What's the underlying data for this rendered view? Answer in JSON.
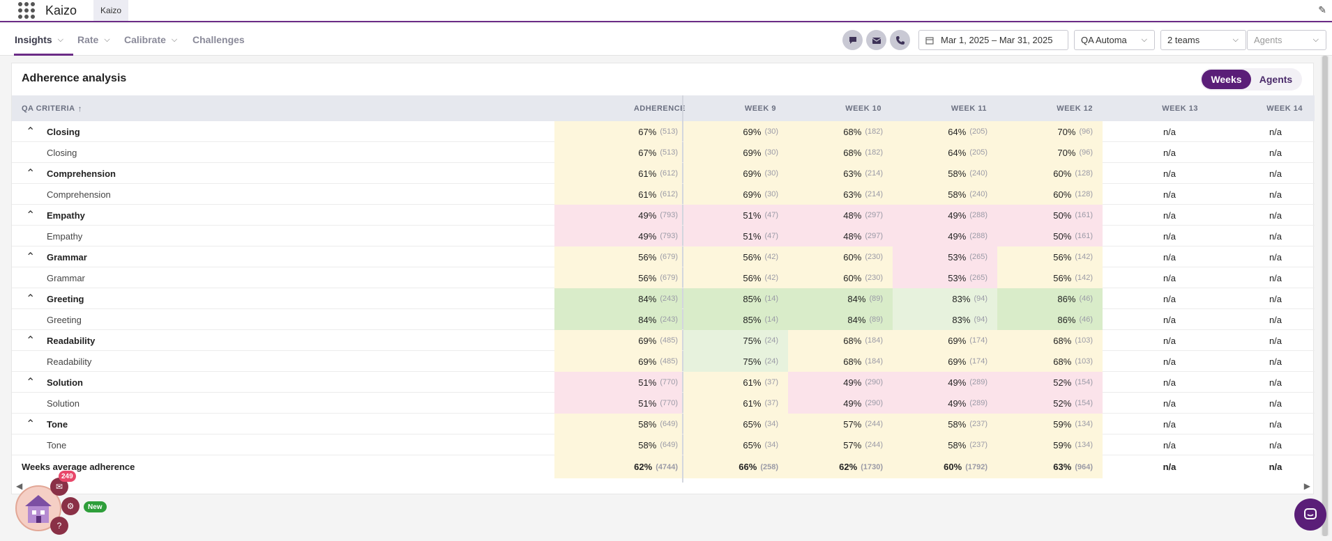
{
  "app": {
    "title": "Kaizo",
    "tab_label": "Kaizo"
  },
  "nav": {
    "items": [
      {
        "label": "Insights",
        "has_dropdown": true,
        "active": true
      },
      {
        "label": "Rate",
        "has_dropdown": true,
        "active": false
      },
      {
        "label": "Calibrate",
        "has_dropdown": true,
        "active": false
      },
      {
        "label": "Challenges",
        "has_dropdown": false,
        "active": false
      }
    ],
    "channels": [
      "chat-icon",
      "email-icon",
      "phone-icon"
    ],
    "date_range": "Mar 1, 2025 – Mar 31, 2025",
    "scorecard": "QA Automa",
    "teams": "2 teams",
    "agents_placeholder": "Agents"
  },
  "card": {
    "title": "Adherence analysis",
    "toggle": {
      "weeks": "Weeks",
      "agents": "Agents",
      "selected": "Weeks"
    }
  },
  "table": {
    "headers": {
      "criteria": "QA CRITERIA",
      "adherence": "ADHERENCE",
      "weeks": [
        "WEEK 9",
        "WEEK 10",
        "WEEK 11",
        "WEEK 12",
        "WEEK 13",
        "WEEK 14"
      ]
    },
    "rows": [
      {
        "name": "Closing",
        "group": true,
        "adh": [
          "67%",
          "(513)"
        ],
        "w": [
          [
            "69%",
            "(30)"
          ],
          [
            "68%",
            "(182)"
          ],
          [
            "64%",
            "(205)"
          ],
          [
            "70%",
            "(96)"
          ],
          [
            "n/a",
            ""
          ],
          [
            "n/a",
            ""
          ]
        ]
      },
      {
        "name": "Closing",
        "group": false,
        "adh": [
          "67%",
          "(513)"
        ],
        "w": [
          [
            "69%",
            "(30)"
          ],
          [
            "68%",
            "(182)"
          ],
          [
            "64%",
            "(205)"
          ],
          [
            "70%",
            "(96)"
          ],
          [
            "n/a",
            ""
          ],
          [
            "n/a",
            ""
          ]
        ]
      },
      {
        "name": "Comprehension",
        "group": true,
        "adh": [
          "61%",
          "(612)"
        ],
        "w": [
          [
            "69%",
            "(30)"
          ],
          [
            "63%",
            "(214)"
          ],
          [
            "58%",
            "(240)"
          ],
          [
            "60%",
            "(128)"
          ],
          [
            "n/a",
            ""
          ],
          [
            "n/a",
            ""
          ]
        ]
      },
      {
        "name": "Comprehension",
        "group": false,
        "adh": [
          "61%",
          "(612)"
        ],
        "w": [
          [
            "69%",
            "(30)"
          ],
          [
            "63%",
            "(214)"
          ],
          [
            "58%",
            "(240)"
          ],
          [
            "60%",
            "(128)"
          ],
          [
            "n/a",
            ""
          ],
          [
            "n/a",
            ""
          ]
        ]
      },
      {
        "name": "Empathy",
        "group": true,
        "adh": [
          "49%",
          "(793)"
        ],
        "w": [
          [
            "51%",
            "(47)"
          ],
          [
            "48%",
            "(297)"
          ],
          [
            "49%",
            "(288)"
          ],
          [
            "50%",
            "(161)"
          ],
          [
            "n/a",
            ""
          ],
          [
            "n/a",
            ""
          ]
        ]
      },
      {
        "name": "Empathy",
        "group": false,
        "adh": [
          "49%",
          "(793)"
        ],
        "w": [
          [
            "51%",
            "(47)"
          ],
          [
            "48%",
            "(297)"
          ],
          [
            "49%",
            "(288)"
          ],
          [
            "50%",
            "(161)"
          ],
          [
            "n/a",
            ""
          ],
          [
            "n/a",
            ""
          ]
        ]
      },
      {
        "name": "Grammar",
        "group": true,
        "adh": [
          "56%",
          "(679)"
        ],
        "w": [
          [
            "56%",
            "(42)"
          ],
          [
            "60%",
            "(230)"
          ],
          [
            "53%",
            "(265)"
          ],
          [
            "56%",
            "(142)"
          ],
          [
            "n/a",
            ""
          ],
          [
            "n/a",
            ""
          ]
        ]
      },
      {
        "name": "Grammar",
        "group": false,
        "adh": [
          "56%",
          "(679)"
        ],
        "w": [
          [
            "56%",
            "(42)"
          ],
          [
            "60%",
            "(230)"
          ],
          [
            "53%",
            "(265)"
          ],
          [
            "56%",
            "(142)"
          ],
          [
            "n/a",
            ""
          ],
          [
            "n/a",
            ""
          ]
        ]
      },
      {
        "name": "Greeting",
        "group": true,
        "adh": [
          "84%",
          "(243)"
        ],
        "w": [
          [
            "85%",
            "(14)"
          ],
          [
            "84%",
            "(89)"
          ],
          [
            "83%",
            "(94)"
          ],
          [
            "86%",
            "(46)"
          ],
          [
            "n/a",
            ""
          ],
          [
            "n/a",
            ""
          ]
        ]
      },
      {
        "name": "Greeting",
        "group": false,
        "adh": [
          "84%",
          "(243)"
        ],
        "w": [
          [
            "85%",
            "(14)"
          ],
          [
            "84%",
            "(89)"
          ],
          [
            "83%",
            "(94)"
          ],
          [
            "86%",
            "(46)"
          ],
          [
            "n/a",
            ""
          ],
          [
            "n/a",
            ""
          ]
        ]
      },
      {
        "name": "Readability",
        "group": true,
        "adh": [
          "69%",
          "(485)"
        ],
        "w": [
          [
            "75%",
            "(24)"
          ],
          [
            "68%",
            "(184)"
          ],
          [
            "69%",
            "(174)"
          ],
          [
            "68%",
            "(103)"
          ],
          [
            "n/a",
            ""
          ],
          [
            "n/a",
            ""
          ]
        ]
      },
      {
        "name": "Readability",
        "group": false,
        "adh": [
          "69%",
          "(485)"
        ],
        "w": [
          [
            "75%",
            "(24)"
          ],
          [
            "68%",
            "(184)"
          ],
          [
            "69%",
            "(174)"
          ],
          [
            "68%",
            "(103)"
          ],
          [
            "n/a",
            ""
          ],
          [
            "n/a",
            ""
          ]
        ]
      },
      {
        "name": "Solution",
        "group": true,
        "adh": [
          "51%",
          "(770)"
        ],
        "w": [
          [
            "61%",
            "(37)"
          ],
          [
            "49%",
            "(290)"
          ],
          [
            "49%",
            "(289)"
          ],
          [
            "52%",
            "(154)"
          ],
          [
            "n/a",
            ""
          ],
          [
            "n/a",
            ""
          ]
        ]
      },
      {
        "name": "Solution",
        "group": false,
        "adh": [
          "51%",
          "(770)"
        ],
        "w": [
          [
            "61%",
            "(37)"
          ],
          [
            "49%",
            "(290)"
          ],
          [
            "49%",
            "(289)"
          ],
          [
            "52%",
            "(154)"
          ],
          [
            "n/a",
            ""
          ],
          [
            "n/a",
            ""
          ]
        ]
      },
      {
        "name": "Tone",
        "group": true,
        "adh": [
          "58%",
          "(649)"
        ],
        "w": [
          [
            "65%",
            "(34)"
          ],
          [
            "57%",
            "(244)"
          ],
          [
            "58%",
            "(237)"
          ],
          [
            "59%",
            "(134)"
          ],
          [
            "n/a",
            ""
          ],
          [
            "n/a",
            ""
          ]
        ]
      },
      {
        "name": "Tone",
        "group": false,
        "adh": [
          "58%",
          "(649)"
        ],
        "w": [
          [
            "65%",
            "(34)"
          ],
          [
            "57%",
            "(244)"
          ],
          [
            "58%",
            "(237)"
          ],
          [
            "59%",
            "(134)"
          ],
          [
            "n/a",
            ""
          ],
          [
            "n/a",
            ""
          ]
        ]
      }
    ],
    "summary": {
      "name": "Weeks average adherence",
      "adh": [
        "62%",
        "(4744)"
      ],
      "w": [
        [
          "66%",
          "(258)"
        ],
        [
          "62%",
          "(1730)"
        ],
        [
          "60%",
          "(1792)"
        ],
        [
          "63%",
          "(964)"
        ],
        [
          "n/a",
          ""
        ],
        [
          "n/a",
          ""
        ]
      ]
    }
  },
  "colors": {
    "brand": "#6b2b86",
    "toggle_active": "#5a1e78",
    "band_red": "#fbe3ea",
    "band_yellow": "#fdf6dc",
    "band_lightgreen": "#e7f2dd",
    "band_green": "#d9ecc9"
  },
  "widget": {
    "count": "249",
    "new_label": "New"
  }
}
